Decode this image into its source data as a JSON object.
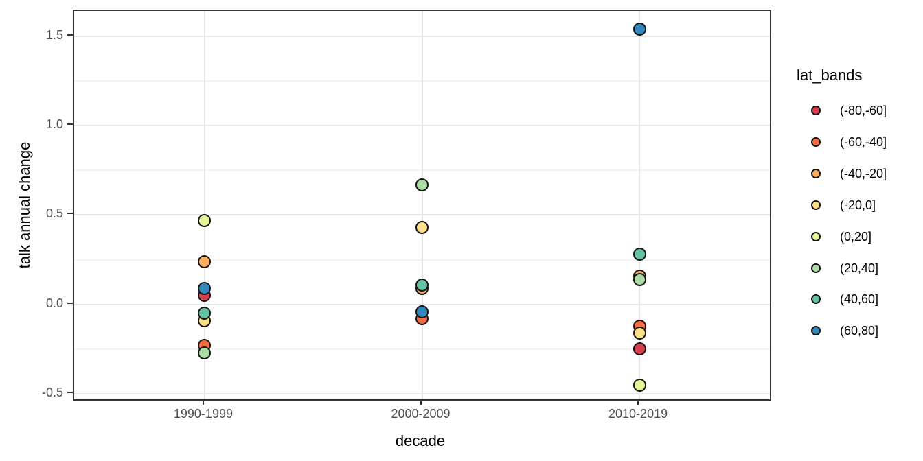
{
  "chart_data": {
    "type": "scatter",
    "title": "",
    "xlabel": "decade",
    "ylabel": "talk annual change",
    "categories": [
      "1990-1999",
      "2000-2009",
      "2010-2019"
    ],
    "ylim": [
      -0.53,
      1.64
    ],
    "yticks": [
      1.5,
      1.0,
      0.5,
      0.0,
      -0.5
    ],
    "ytick_labels": [
      "1.5",
      "1.0",
      "0.5",
      "0.0",
      "-0.5"
    ],
    "yminor": [
      1.25,
      0.75,
      0.25,
      -0.25
    ],
    "grid": true,
    "legend": {
      "title": "lat_bands",
      "position": "right"
    },
    "series": [
      {
        "name": "(-80,-60]",
        "color": "#d53e4f",
        "points": [
          {
            "x": "1990-1999",
            "y": 0.05
          },
          {
            "x": "2010-2019",
            "y": -0.25
          }
        ]
      },
      {
        "name": "(-60,-40]",
        "color": "#f46d43",
        "points": [
          {
            "x": "1990-1999",
            "y": -0.23
          },
          {
            "x": "2000-2009",
            "y": -0.08
          },
          {
            "x": "2010-2019",
            "y": -0.12
          }
        ]
      },
      {
        "name": "(-40,-20]",
        "color": "#fdae61",
        "points": [
          {
            "x": "1990-1999",
            "y": 0.24
          },
          {
            "x": "2000-2009",
            "y": 0.09
          },
          {
            "x": "2010-2019",
            "y": 0.16
          }
        ]
      },
      {
        "name": "(-20,0]",
        "color": "#fee08b",
        "points": [
          {
            "x": "1990-1999",
            "y": -0.09
          },
          {
            "x": "2000-2009",
            "y": 0.43
          },
          {
            "x": "2010-2019",
            "y": -0.16
          }
        ]
      },
      {
        "name": "(0,20]",
        "color": "#e6f598",
        "points": [
          {
            "x": "1990-1999",
            "y": 0.47
          },
          {
            "x": "2010-2019",
            "y": -0.45
          }
        ]
      },
      {
        "name": "(20,40]",
        "color": "#abdda4",
        "points": [
          {
            "x": "1990-1999",
            "y": -0.27
          },
          {
            "x": "2000-2009",
            "y": 0.67
          },
          {
            "x": "2010-2019",
            "y": 0.14
          }
        ]
      },
      {
        "name": "(40,60]",
        "color": "#66c2a5",
        "points": [
          {
            "x": "1990-1999",
            "y": -0.05
          },
          {
            "x": "2000-2009",
            "y": 0.11
          },
          {
            "x": "2010-2019",
            "y": 0.28
          }
        ]
      },
      {
        "name": "(60,80]",
        "color": "#3288bd",
        "points": [
          {
            "x": "1990-1999",
            "y": 0.09
          },
          {
            "x": "2000-2009",
            "y": -0.04
          },
          {
            "x": "2010-2019",
            "y": 1.54
          }
        ]
      }
    ]
  }
}
